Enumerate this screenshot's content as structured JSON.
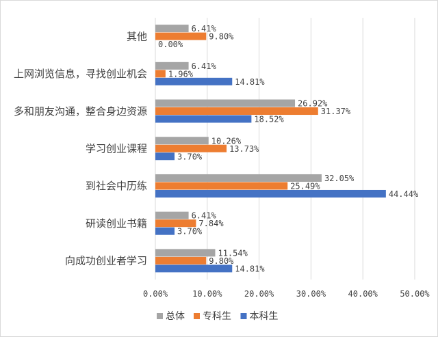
{
  "chart_data": {
    "type": "bar",
    "orientation": "horizontal",
    "categories": [
      "其他",
      "上网浏览信息，寻找创业机会",
      "多和朋友沟通，整合身边资源",
      "学习创业课程",
      "到社会中历练",
      "研读创业书籍",
      "向成功创业者学习"
    ],
    "series": [
      {
        "name": "总体",
        "color": "#a5a5a5",
        "values": [
          6.41,
          6.41,
          26.92,
          10.26,
          32.05,
          6.41,
          11.54
        ],
        "labels": [
          "6.41%",
          "6.41%",
          "26.92%",
          "10.26%",
          "32.05%",
          "6.41%",
          "11.54%"
        ]
      },
      {
        "name": "专科生",
        "color": "#ed7d31",
        "values": [
          9.8,
          1.96,
          31.37,
          13.73,
          25.49,
          7.84,
          9.8
        ],
        "labels": [
          "9.80%",
          "1.96%",
          "31.37%",
          "13.73%",
          "25.49%",
          "7.84%",
          "9.80%"
        ]
      },
      {
        "name": "本科生",
        "color": "#4472c4",
        "values": [
          0.0,
          14.81,
          18.52,
          3.7,
          44.44,
          3.7,
          14.81
        ],
        "labels": [
          "0.00%",
          "14.81%",
          "18.52%",
          "3.70%",
          "44.44%",
          "3.70%",
          "14.81%"
        ]
      }
    ],
    "xlim": [
      0,
      50
    ],
    "xticks": [
      "0.00%",
      "10.00%",
      "20.00%",
      "30.00%",
      "40.00%",
      "50.00%"
    ],
    "grid": true,
    "legend_position": "bottom"
  }
}
